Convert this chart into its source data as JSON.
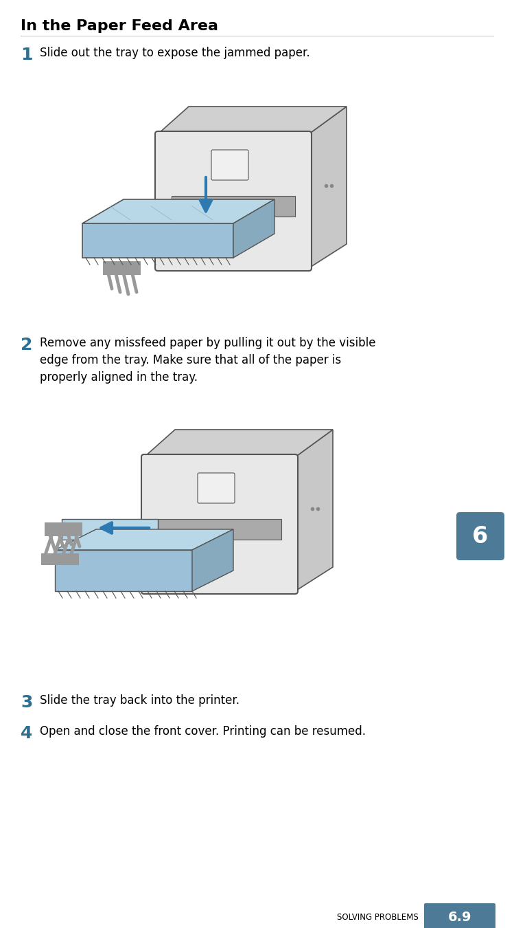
{
  "bg_color": "#ffffff",
  "title": "In the Paper Feed Area",
  "title_color": "#000000",
  "title_fontsize": 16,
  "title_bold": true,
  "step_number_color": "#2e6e8e",
  "step_number_fontsize": 18,
  "step_text_fontsize": 12,
  "steps": [
    {
      "number": "1",
      "text": "Slide out the tray to expose the jammed paper.",
      "has_image": true
    },
    {
      "number": "2",
      "text": "Remove any missfeed paper by pulling it out by the visible\nedge from the tray. Make sure that all of the paper is\nproperly aligned in the tray.",
      "has_image": true
    },
    {
      "number": "3",
      "text": "Slide the tray back into the printer.",
      "has_image": false
    },
    {
      "number": "4",
      "text": "Open and close the front cover. Printing can be resumed.",
      "has_image": false
    }
  ],
  "footer_text": "Solving Problems",
  "footer_number": "6.9",
  "footer_bg_color": "#4d7a96",
  "footer_text_color": "#000000",
  "footer_number_color": "#ffffff",
  "chapter_badge_color": "#4d7a96",
  "chapter_badge_text": "6",
  "chapter_badge_text_color": "#ffffff",
  "tray_color": "#b8d8e8",
  "tray_dark_color": "#9cc0d8",
  "printer_body_color": "#e8e8e8",
  "printer_top_color": "#d0d0d0",
  "printer_right_color": "#c8c8c8",
  "arrow_color": "#2e7ab0",
  "line_color": "#555555",
  "hand_color": "#999999",
  "separator_color": "#cccccc"
}
